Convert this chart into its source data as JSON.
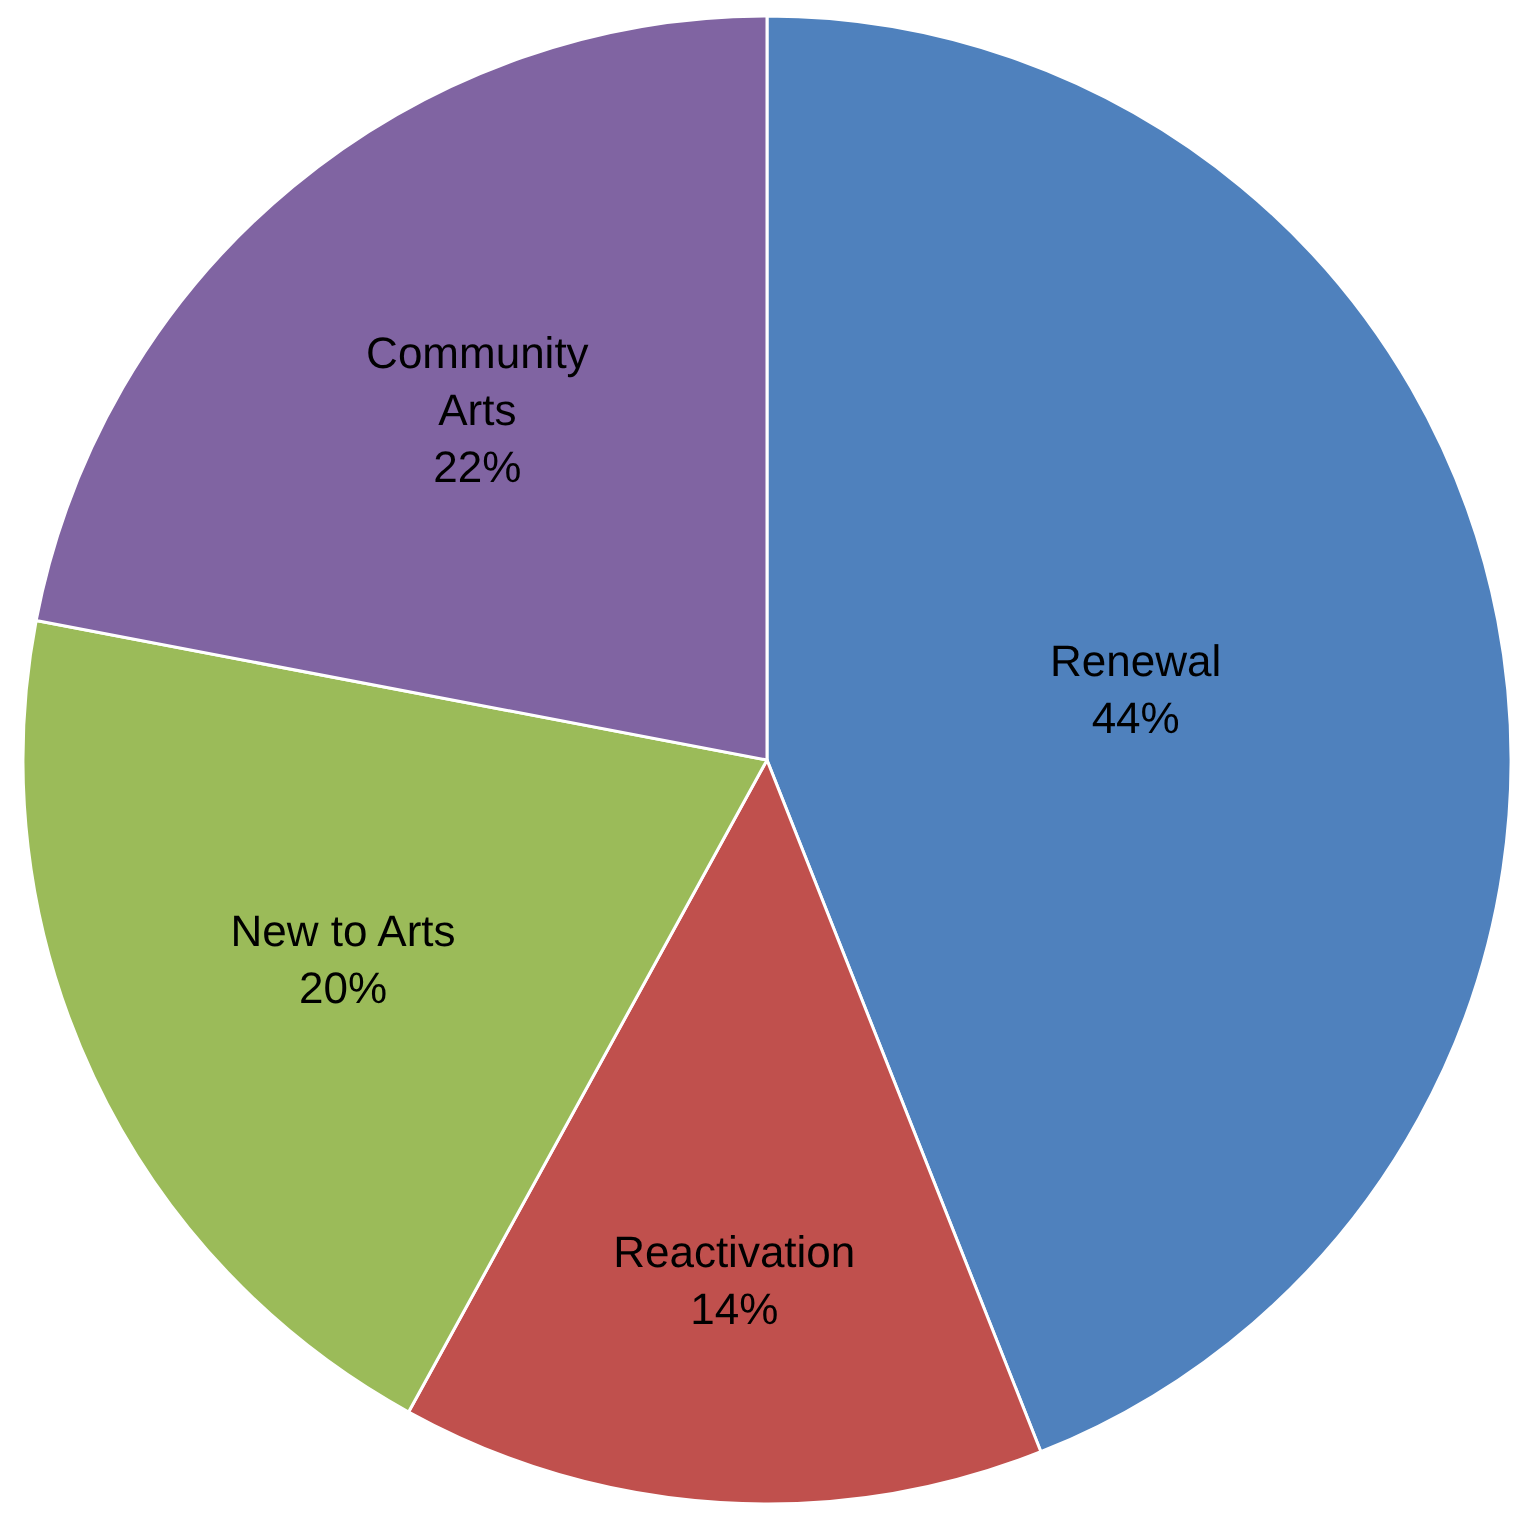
{
  "chart_data": {
    "type": "pie",
    "categories": [
      "Renewal",
      "Reactivation",
      "New to Arts",
      "Community Arts"
    ],
    "values": [
      44,
      14,
      20,
      22
    ],
    "value_labels": [
      "44%",
      "14%",
      "20%",
      "22%"
    ],
    "colors": [
      "#4f81bd",
      "#c0504d",
      "#9bbb59",
      "#8064a2"
    ],
    "legend": false
  }
}
